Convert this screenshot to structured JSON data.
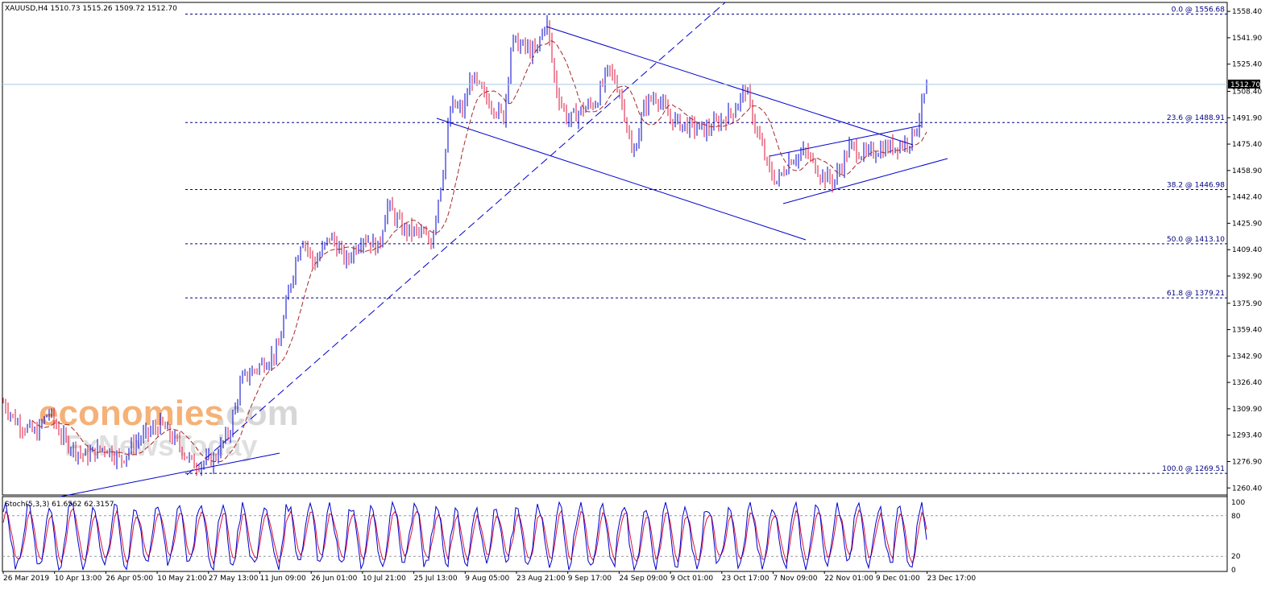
{
  "header": {
    "symbol_line": "XAUUSD,H4  1510.73 1515.26 1509.72 1512.70",
    "stoch_line": "Stoch(5,3,3) 61.6562 62.3157"
  },
  "watermark": {
    "brand_primary": "economies",
    "brand_suffix": ".com",
    "brand_secondary": "FxNewsToday",
    "colors": {
      "primary": "#f4a460",
      "suffix": "#d3d3d3",
      "secondary": "#d8d8d8"
    }
  },
  "colors": {
    "grid_fib": "#000080",
    "trendline": "#0000cd",
    "bull_candle": "#0000cd",
    "bear_candle": "#dc143c",
    "ma": "#a52a2a",
    "stoch_main": "#0000cd",
    "stoch_signal": "#dc143c",
    "price_line": "#a8c8e8"
  },
  "chart_data": {
    "type": "candlestick",
    "symbol": "XAUUSD",
    "timeframe": "H4",
    "ohlc_last": {
      "open": 1510.73,
      "high": 1515.26,
      "low": 1509.72,
      "close": 1512.7
    },
    "current_price": "1512.70",
    "y_axis": {
      "range": [
        1256,
        1564
      ],
      "ticks": [
        "1558.40",
        "1541.90",
        "1525.40",
        "1508.40",
        "1491.90",
        "1475.40",
        "1458.90",
        "1442.40",
        "1425.90",
        "1409.40",
        "1392.90",
        "1375.90",
        "1359.40",
        "1342.90",
        "1326.40",
        "1309.90",
        "1293.40",
        "1276.90",
        "1260.40"
      ]
    },
    "x_axis": {
      "ticks": [
        "26 Mar 2019",
        "10 Apr 13:00",
        "26 Apr 05:00",
        "10 May 21:00",
        "27 May 13:00",
        "11 Jun 09:00",
        "26 Jun 01:00",
        "10 Jul 21:00",
        "25 Jul 13:00",
        "9 Aug 05:00",
        "23 Aug 21:00",
        "9 Sep 17:00",
        "24 Sep 09:00",
        "9 Oct 01:00",
        "23 Oct 17:00",
        "7 Nov 09:00",
        "22 Nov 01:00",
        "9 Dec 01:00",
        "23 Dec 17:00"
      ]
    },
    "fibonacci_levels": [
      {
        "label": "0.0 @ 1556.68",
        "value": 1556.68
      },
      {
        "label": "23.6 @ 1488.91",
        "value": 1488.91
      },
      {
        "label": "38.2 @ 1446.98",
        "value": 1446.98
      },
      {
        "label": "50.0 @ 1413.10",
        "value": 1413.1
      },
      {
        "label": "61.8 @ 1379.21",
        "value": 1379.21
      },
      {
        "label": "100.0 @ 1269.51",
        "value": 1269.51
      }
    ],
    "price_path": [
      [
        0,
        1317
      ],
      [
        20,
        1302
      ],
      [
        45,
        1294
      ],
      [
        60,
        1308
      ],
      [
        80,
        1290
      ],
      [
        105,
        1280
      ],
      [
        130,
        1286
      ],
      [
        150,
        1278
      ],
      [
        170,
        1290
      ],
      [
        200,
        1300
      ],
      [
        225,
        1285
      ],
      [
        240,
        1275
      ],
      [
        265,
        1278
      ],
      [
        285,
        1296
      ],
      [
        300,
        1328
      ],
      [
        320,
        1336
      ],
      [
        345,
        1346
      ],
      [
        360,
        1388
      ],
      [
        375,
        1418
      ],
      [
        390,
        1400
      ],
      [
        410,
        1418
      ],
      [
        430,
        1402
      ],
      [
        450,
        1418
      ],
      [
        470,
        1410
      ],
      [
        480,
        1438
      ],
      [
        500,
        1422
      ],
      [
        520,
        1420
      ],
      [
        535,
        1414
      ],
      [
        550,
        1460
      ],
      [
        560,
        1500
      ],
      [
        575,
        1496
      ],
      [
        585,
        1518
      ],
      [
        600,
        1506
      ],
      [
        625,
        1492
      ],
      [
        635,
        1540
      ],
      [
        650,
        1536
      ],
      [
        665,
        1532
      ],
      [
        678,
        1554
      ],
      [
        690,
        1510
      ],
      [
        705,
        1490
      ],
      [
        720,
        1496
      ],
      [
        740,
        1502
      ],
      [
        755,
        1522
      ],
      [
        765,
        1514
      ],
      [
        775,
        1496
      ],
      [
        785,
        1466
      ],
      [
        800,
        1500
      ],
      [
        815,
        1506
      ],
      [
        830,
        1492
      ],
      [
        845,
        1488
      ],
      [
        860,
        1486
      ],
      [
        875,
        1484
      ],
      [
        895,
        1490
      ],
      [
        910,
        1496
      ],
      [
        925,
        1510
      ],
      [
        940,
        1482
      ],
      [
        955,
        1458
      ],
      [
        965,
        1452
      ],
      [
        980,
        1466
      ],
      [
        1000,
        1470
      ],
      [
        1020,
        1456
      ],
      [
        1035,
        1452
      ],
      [
        1055,
        1474
      ],
      [
        1075,
        1468
      ],
      [
        1090,
        1472
      ],
      [
        1110,
        1474
      ],
      [
        1130,
        1478
      ],
      [
        1140,
        1490
      ],
      [
        1150,
        1512
      ]
    ],
    "stochastic": {
      "name": "Stoch(5,3,3)",
      "main": 61.6562,
      "signal": 62.3157,
      "levels": [
        80,
        20
      ],
      "axis_ticks": [
        "100",
        "80",
        "20",
        "0"
      ]
    }
  }
}
